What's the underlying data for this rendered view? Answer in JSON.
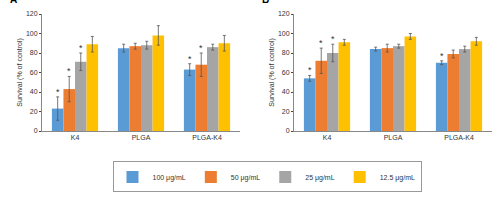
{
  "chart_data": [
    {
      "type": "bar",
      "title": "A",
      "ylabel": "Survival (% of control)",
      "categories": [
        "K4",
        "PLGA",
        "PLGA-K4"
      ],
      "ylim": [
        0,
        120
      ],
      "yticks": [
        0,
        20,
        40,
        60,
        80,
        100,
        120
      ],
      "grid": false,
      "legend": "bottom",
      "series": [
        {
          "name": "100 μg/mL",
          "color": "#5b9bd5",
          "values": [
            23,
            85,
            63
          ],
          "errors": [
            12,
            4,
            6
          ]
        },
        {
          "name": "50 μg/mL",
          "color": "#ed7d31",
          "values": [
            43,
            87,
            68
          ],
          "errors": [
            13,
            3,
            12
          ]
        },
        {
          "name": "25 μg/mL",
          "color": "#a5a5a5",
          "values": [
            71,
            88,
            86
          ],
          "errors": [
            9,
            4,
            3
          ]
        },
        {
          "name": "12.5 μg/mL",
          "color": "#ffc000",
          "values": [
            89,
            98,
            90
          ],
          "errors": [
            8,
            10,
            8
          ]
        }
      ],
      "annotations": [
        {
          "text": "*",
          "category": "K4",
          "series": "100 μg/mL"
        },
        {
          "text": "*",
          "category": "K4",
          "series": "50 μg/mL"
        },
        {
          "text": "*",
          "category": "K4",
          "series": "25 μg/mL"
        },
        {
          "text": "*",
          "category": "PLGA-K4",
          "series": "100 μg/mL"
        },
        {
          "text": "*",
          "category": "PLGA-K4",
          "series": "50 μg/mL"
        }
      ]
    },
    {
      "type": "bar",
      "title": "B",
      "ylabel": "Survival (% of control)",
      "categories": [
        "K4",
        "PLGA",
        "PLGA-K4"
      ],
      "ylim": [
        0,
        120
      ],
      "yticks": [
        0,
        20,
        40,
        60,
        80,
        100,
        120
      ],
      "grid": false,
      "legend": "bottom",
      "series": [
        {
          "name": "100 μg/mL",
          "color": "#5b9bd5",
          "values": [
            54,
            84,
            70
          ],
          "errors": [
            3,
            2,
            2
          ]
        },
        {
          "name": "50 μg/mL",
          "color": "#ed7d31",
          "values": [
            72,
            85,
            79
          ],
          "errors": [
            13,
            4,
            4
          ]
        },
        {
          "name": "25 μg/mL",
          "color": "#a5a5a5",
          "values": [
            80,
            87,
            84
          ],
          "errors": [
            9,
            2,
            3
          ]
        },
        {
          "name": "12.5 μg/mL",
          "color": "#ffc000",
          "values": [
            91,
            97,
            92
          ],
          "errors": [
            3,
            3,
            4
          ]
        }
      ],
      "annotations": [
        {
          "text": "*",
          "category": "K4",
          "series": "100 μg/mL"
        },
        {
          "text": "*",
          "category": "K4",
          "series": "50 μg/mL"
        },
        {
          "text": "*",
          "category": "K4",
          "series": "25 μg/mL"
        },
        {
          "text": "*",
          "category": "PLGA-K4",
          "series": "100 μg/mL"
        }
      ]
    }
  ]
}
